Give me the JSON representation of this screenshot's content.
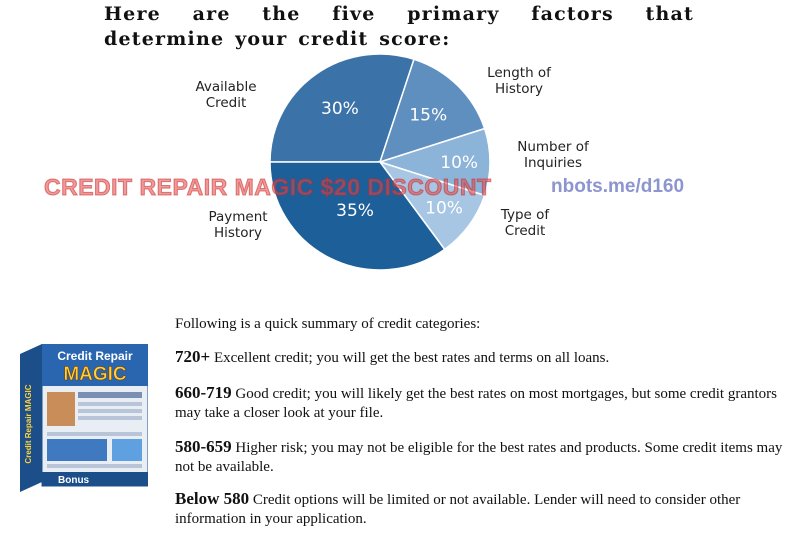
{
  "heading": "Here are the five primary factors that determine your credit score:",
  "chart_data": {
    "type": "pie",
    "slices": [
      {
        "label": "Available Credit",
        "label_lines": [
          "Available",
          "Credit"
        ],
        "value": 30,
        "pct_label": "30%",
        "color": "#3b73a8"
      },
      {
        "label": "Length of History",
        "label_lines": [
          "Length of",
          "History"
        ],
        "value": 15,
        "pct_label": "15%",
        "color": "#5f8fbf"
      },
      {
        "label": "Number of Inquiries",
        "label_lines": [
          "Number of",
          "Inquiries"
        ],
        "value": 10,
        "pct_label": "10%",
        "color": "#8cb3d8"
      },
      {
        "label": "Type of Credit",
        "label_lines": [
          "Type of",
          "Credit"
        ],
        "value": 10,
        "pct_label": "10%",
        "color": "#a7c6e3"
      },
      {
        "label": "Payment History",
        "label_lines": [
          "Payment",
          "History"
        ],
        "value": 35,
        "pct_label": "35%",
        "color": "#1d5f99"
      }
    ]
  },
  "watermark": {
    "left_text": "CREDIT REPAIR MAGIC $20 DISCOUNT",
    "right_text": "nbots.me/d160"
  },
  "product_box": {
    "title_line1": "Credit Repair",
    "title_line2": "MAGIC",
    "side_text": "Credit Repair MAGIC",
    "bonus": "Bonus"
  },
  "summary": {
    "intro": "Following is a quick summary of credit categories:",
    "categories": [
      {
        "range": "720+",
        "text": "Excellent credit; you will get the best rates and terms on all loans."
      },
      {
        "range": "660-719",
        "text": "Good credit; you will likely get the best rates on most mortgages, but some credit grantors may take a closer look at your file."
      },
      {
        "range": "580-659",
        "text": "Higher risk; you may not be eligible for the best rates and products. Some credit items may not be available."
      },
      {
        "range": "Below 580",
        "text": "Credit options will be limited or not available. Lender will need to consider other information in your application."
      }
    ]
  }
}
